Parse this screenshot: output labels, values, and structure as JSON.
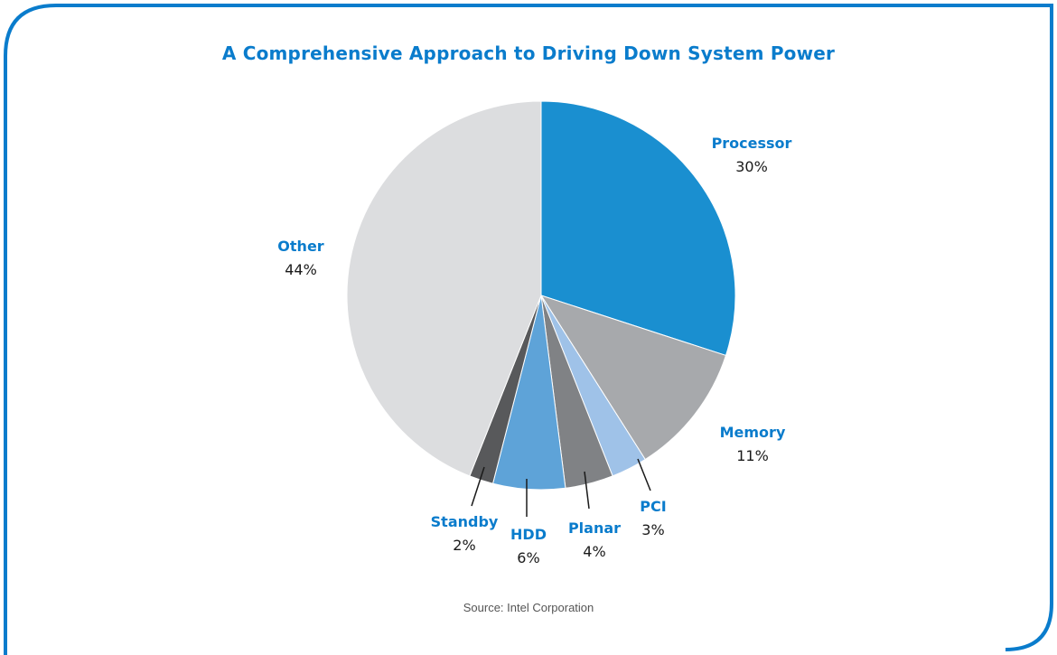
{
  "theme": {
    "accent": "#0a7ccc",
    "title_color": "#0a7ccc",
    "label_name_color": "#0a7ccc",
    "label_value_color": "#1a1a1a",
    "border_color": "#0a7ccc"
  },
  "source_text": "Source: Intel Corporation",
  "chart_data": {
    "type": "pie",
    "title": "A Comprehensive Approach to Driving Down System Power",
    "start_angle_deg": 0,
    "direction": "clockwise",
    "slices": [
      {
        "label": "Processor",
        "value": 30,
        "value_label": "30%",
        "color": "#1a8fd0",
        "label_position": "outside-right-top",
        "leader_line": false
      },
      {
        "label": "Memory",
        "value": 11,
        "value_label": "11%",
        "color": "#a7a9ac",
        "label_position": "outside-right",
        "leader_line": false
      },
      {
        "label": "PCI",
        "value": 3,
        "value_label": "3%",
        "color": "#9fc2e8",
        "label_position": "below",
        "leader_line": true
      },
      {
        "label": "Planar",
        "value": 4,
        "value_label": "4%",
        "color": "#808285",
        "label_position": "below",
        "leader_line": true
      },
      {
        "label": "HDD",
        "value": 6,
        "value_label": "6%",
        "color": "#5ea3d8",
        "label_position": "below",
        "leader_line": true
      },
      {
        "label": "Standby",
        "value": 2,
        "value_label": "2%",
        "color": "#58595b",
        "label_position": "below",
        "leader_line": true
      },
      {
        "label": "Other",
        "value": 44,
        "value_label": "44%",
        "color": "#dcdddf",
        "label_position": "outside-left-top",
        "leader_line": false
      }
    ]
  }
}
